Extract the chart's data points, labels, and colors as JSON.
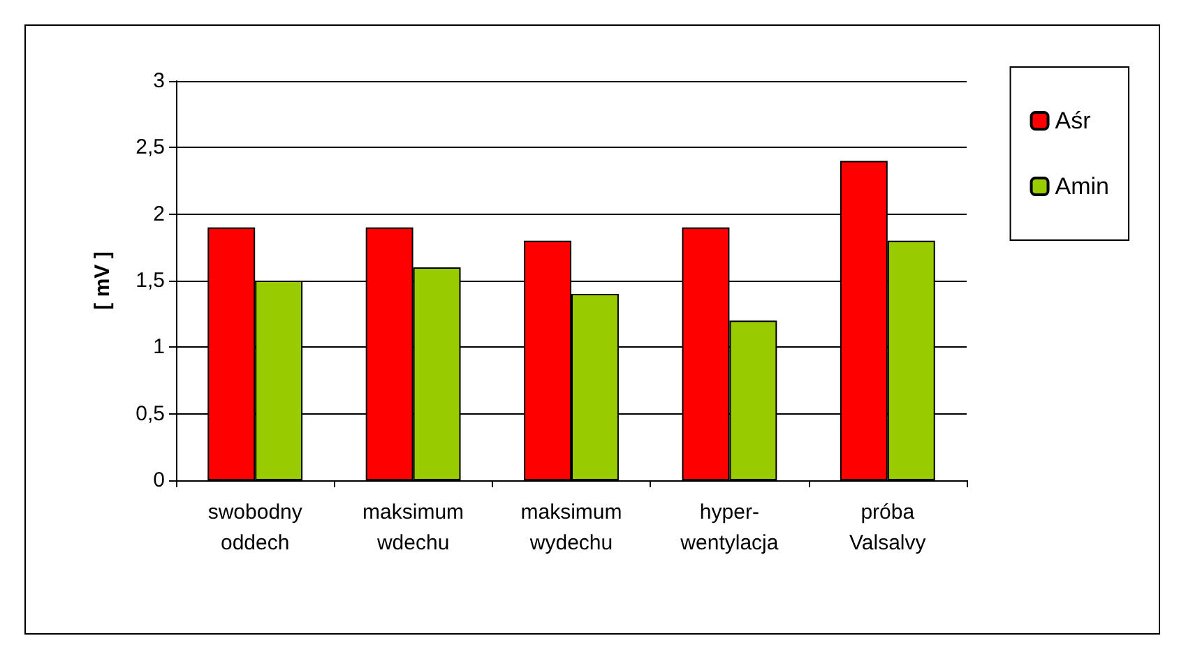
{
  "chart_data": {
    "type": "bar",
    "ylabel": "[ mV ]",
    "categories": [
      "swobodny\noddech",
      "maksimum\nwdechu",
      "maksimum\nwydechu",
      "hyper-\nwentylacja",
      "próba\nValsalvy"
    ],
    "series": [
      {
        "name": "Aśr",
        "color": "#ff0000",
        "values": [
          1.9,
          1.9,
          1.8,
          1.9,
          2.4
        ]
      },
      {
        "name": "Amin",
        "color": "#99cc00",
        "values": [
          1.5,
          1.6,
          1.4,
          1.2,
          1.8
        ]
      }
    ],
    "ylim": [
      0,
      3
    ],
    "yticks": [
      0,
      {
        "value": 0.5,
        "label": "0,5"
      },
      1,
      {
        "value": 1.5,
        "label": "1,5"
      },
      2,
      {
        "value": 2.5,
        "label": "2,5"
      },
      3
    ],
    "grid": "y",
    "legend": "top right"
  }
}
